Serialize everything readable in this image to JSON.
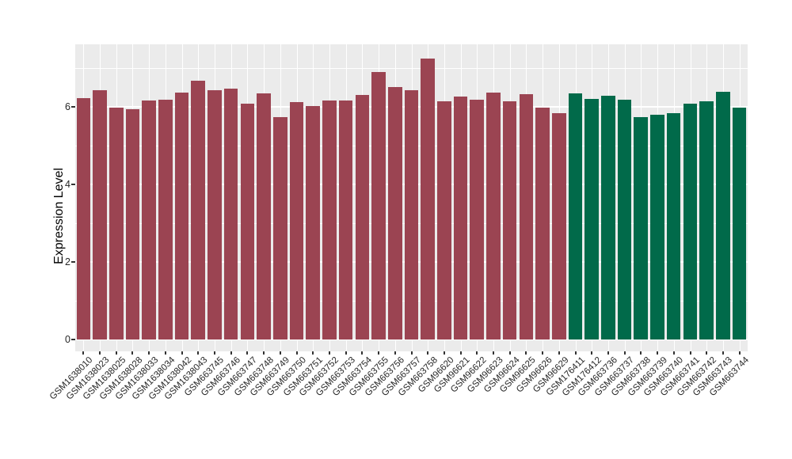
{
  "chart_data": {
    "type": "bar",
    "title": "",
    "xlabel": "",
    "ylabel": "Expression Level",
    "ylim": [
      0,
      7.6
    ],
    "yticks": [
      0,
      2,
      4,
      6
    ],
    "yticks_minor": [
      1,
      3,
      5,
      7
    ],
    "grid": "on",
    "legend": "none",
    "panel_background": "#EBEBEB",
    "grid_color": "#FFFFFF",
    "group_colors": {
      "group_1": "#9B4452",
      "group_2": "#016A4A"
    },
    "categories": [
      "GSM1638010",
      "GSM1638023",
      "GSM1638025",
      "GSM1638028",
      "GSM1638033",
      "GSM1638034",
      "GSM1638042",
      "GSM1638043",
      "GSM663745",
      "GSM663746",
      "GSM663747",
      "GSM663748",
      "GSM663749",
      "GSM663750",
      "GSM663751",
      "GSM663752",
      "GSM663753",
      "GSM663754",
      "GSM663755",
      "GSM663756",
      "GSM663757",
      "GSM663758",
      "GSM96620",
      "GSM96621",
      "GSM96622",
      "GSM96623",
      "GSM96624",
      "GSM96625",
      "GSM96626",
      "GSM96629",
      "GSM176411",
      "GSM176412",
      "GSM663736",
      "GSM663737",
      "GSM663738",
      "GSM663739",
      "GSM663740",
      "GSM663741",
      "GSM663742",
      "GSM663743",
      "GSM663744"
    ],
    "values": [
      6.22,
      6.42,
      5.98,
      5.93,
      6.17,
      6.18,
      6.37,
      6.68,
      6.43,
      6.46,
      6.08,
      6.35,
      5.74,
      6.12,
      6.02,
      6.16,
      6.16,
      6.31,
      6.9,
      6.52,
      6.42,
      7.24,
      6.15,
      6.27,
      6.18,
      6.37,
      6.15,
      6.33,
      5.98,
      5.83,
      6.35,
      6.2,
      6.29,
      6.18,
      5.73,
      5.8,
      5.84,
      6.09,
      6.14,
      6.39,
      5.98
    ],
    "colors": [
      "#9B4452",
      "#9B4452",
      "#9B4452",
      "#9B4452",
      "#9B4452",
      "#9B4452",
      "#9B4452",
      "#9B4452",
      "#9B4452",
      "#9B4452",
      "#9B4452",
      "#9B4452",
      "#9B4452",
      "#9B4452",
      "#9B4452",
      "#9B4452",
      "#9B4452",
      "#9B4452",
      "#9B4452",
      "#9B4452",
      "#9B4452",
      "#9B4452",
      "#9B4452",
      "#9B4452",
      "#9B4452",
      "#9B4452",
      "#9B4452",
      "#9B4452",
      "#9B4452",
      "#9B4452",
      "#016A4A",
      "#016A4A",
      "#016A4A",
      "#016A4A",
      "#016A4A",
      "#016A4A",
      "#016A4A",
      "#016A4A",
      "#016A4A",
      "#016A4A",
      "#016A4A"
    ],
    "ytick_labels": [
      "0",
      "2",
      "4",
      "6"
    ]
  }
}
